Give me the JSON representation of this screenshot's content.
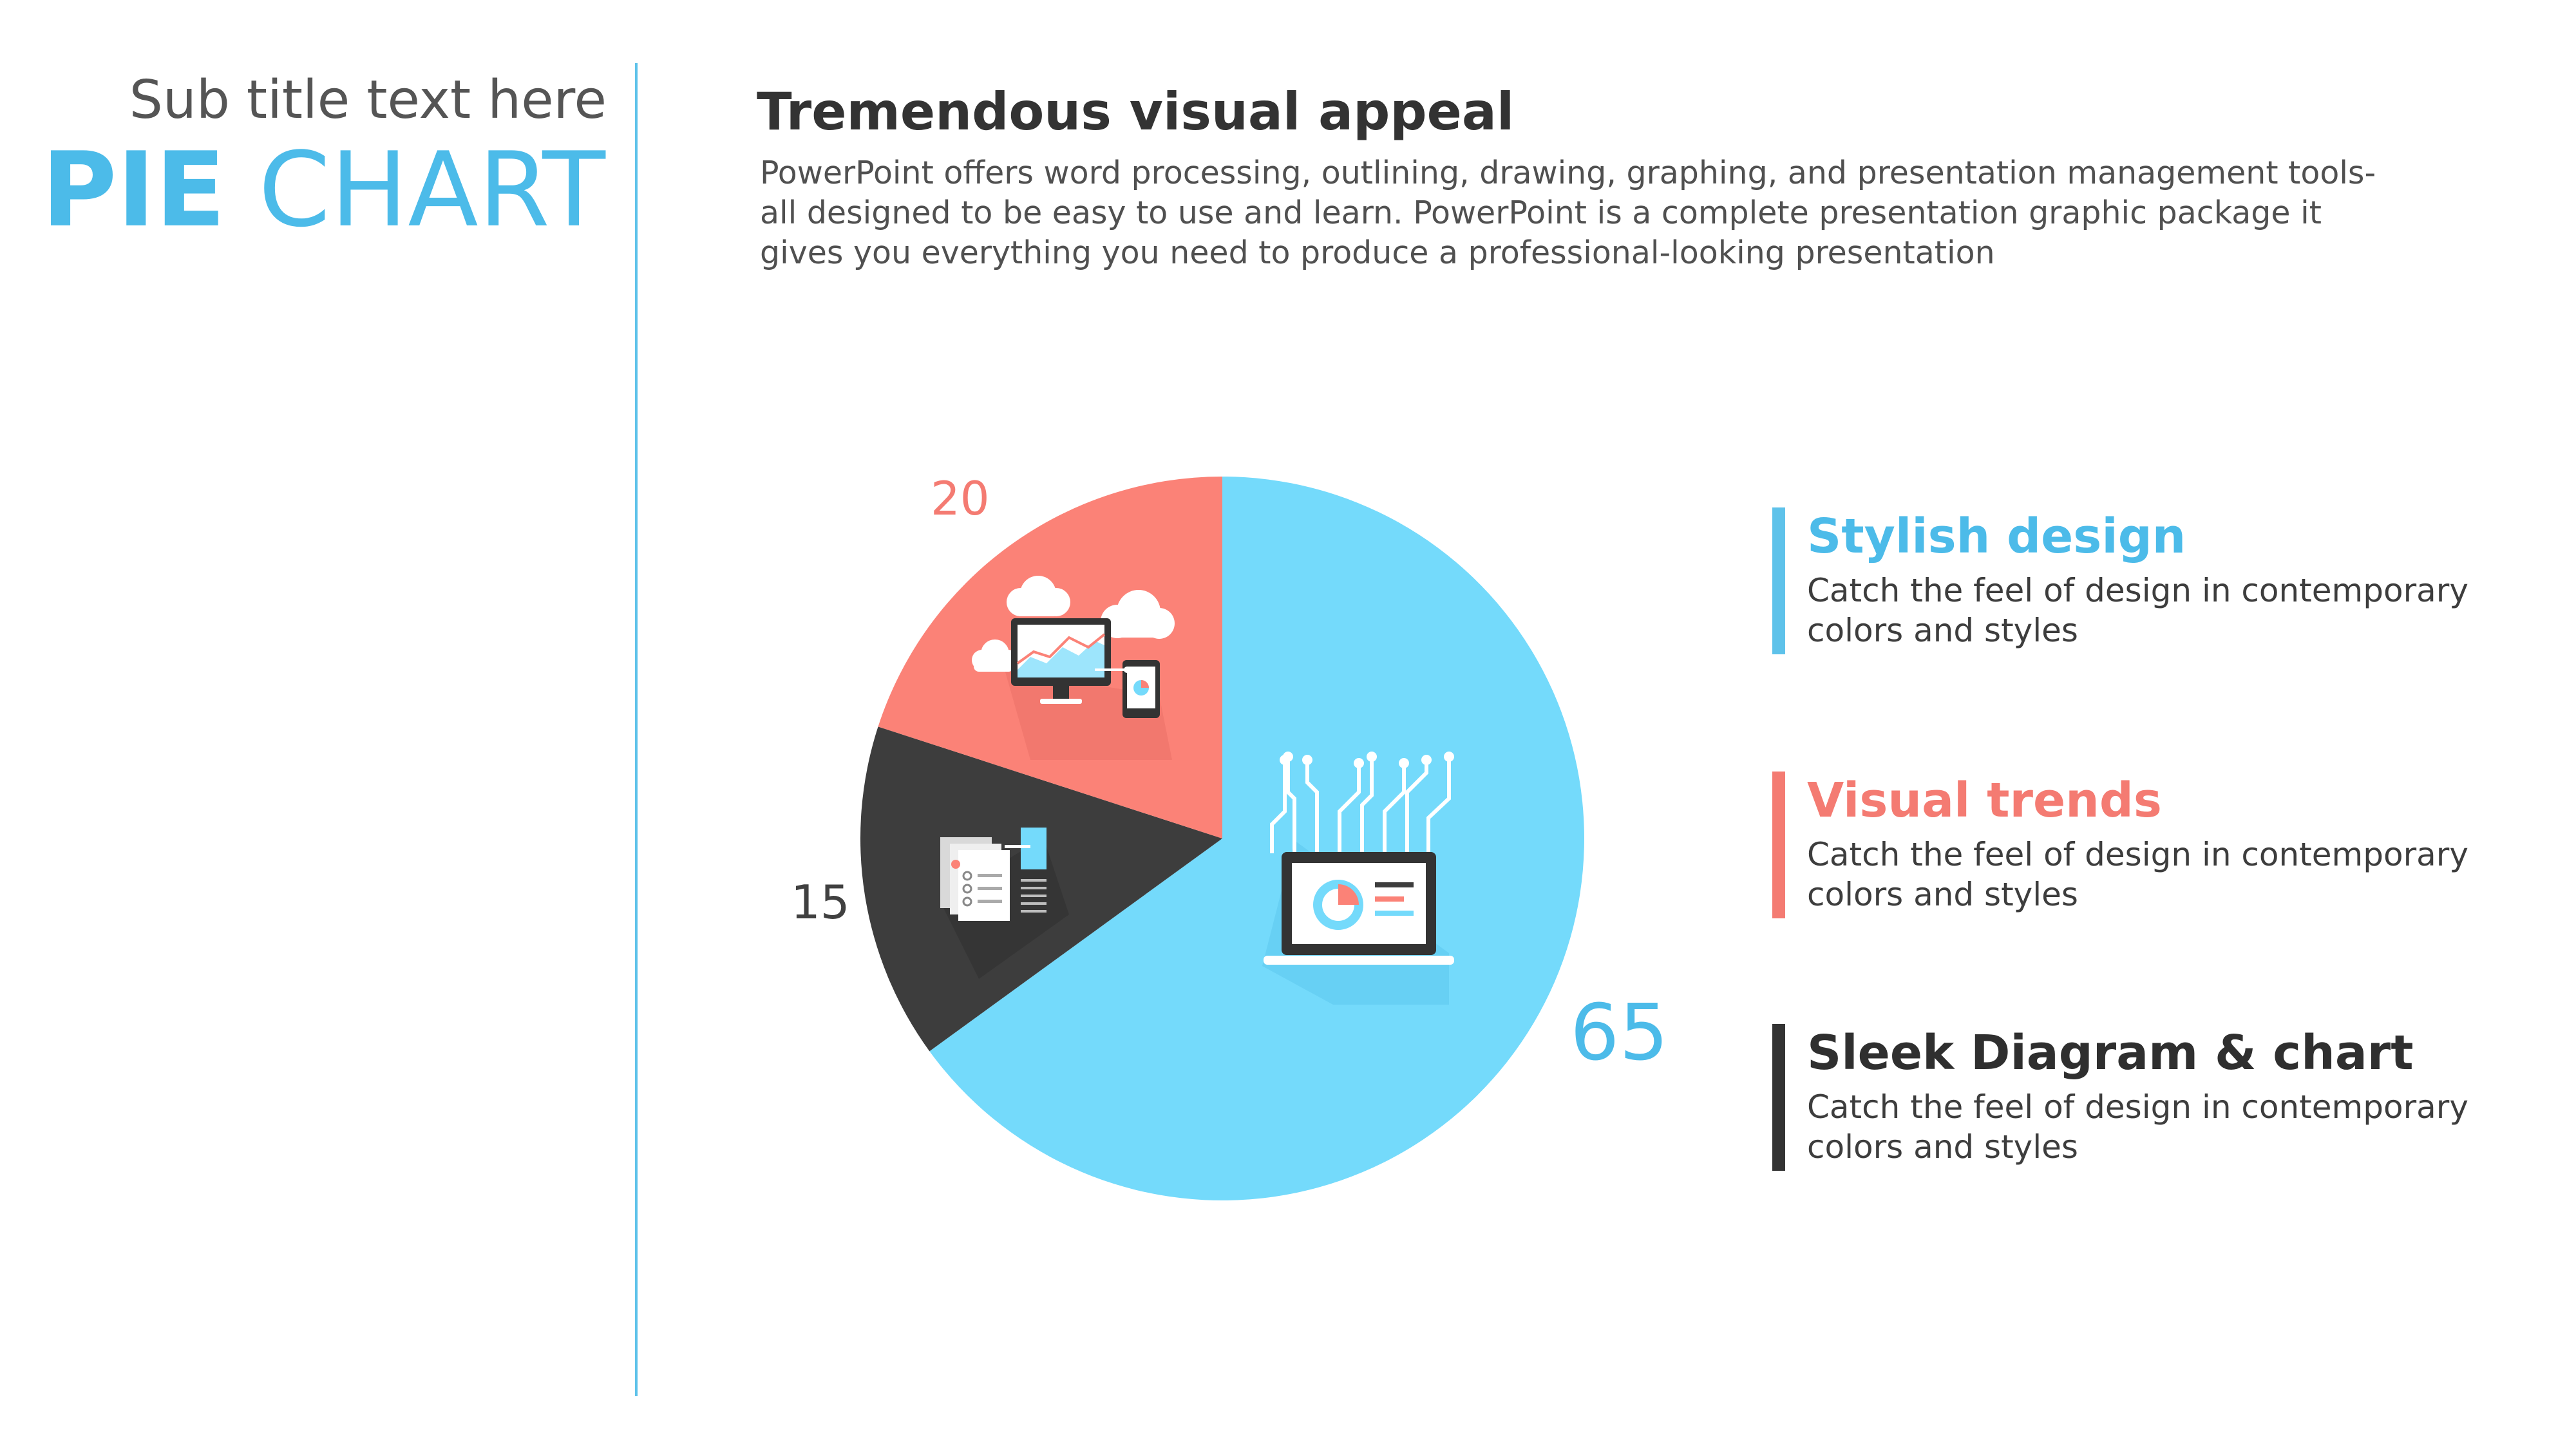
{
  "header": {
    "subtitle": "Sub title text here",
    "title_bold": "PIE",
    "title_light": "CHART"
  },
  "content": {
    "heading": "Tremendous visual appeal",
    "description": "PowerPoint offers word processing, outlining, drawing, graphing, and presentation management tools- all designed to be easy to use and learn. PowerPoint is a complete presentation graphic package it gives you everything you need to produce a professional-looking presentation"
  },
  "colors": {
    "blue": "#74dafb",
    "red": "#fb8277",
    "dark": "#3d3d3d",
    "accent_blue": "#4cbbe9",
    "accent_red": "#f47b72"
  },
  "chart_data": {
    "type": "pie",
    "slices": [
      {
        "value": 65,
        "label": "65",
        "color": "#74dafb",
        "icon": "laptop-circuit-icon"
      },
      {
        "value": 15,
        "label": "15",
        "color": "#3d3d3d",
        "icon": "documents-icon"
      },
      {
        "value": 20,
        "label": "20",
        "color": "#fb8277",
        "icon": "cloud-devices-icon"
      }
    ]
  },
  "legend": [
    {
      "title": "Stylish design",
      "text": "Catch the feel of design in contemporary colors and styles",
      "color": "#5ec2ea"
    },
    {
      "title": "Visual trends",
      "text": "Catch the feel of design in contemporary colors and styles",
      "color": "#f47b72"
    },
    {
      "title": "Sleek Diagram & chart",
      "text": "Catch the feel of design in contemporary colors and styles",
      "color": "#333333"
    }
  ]
}
